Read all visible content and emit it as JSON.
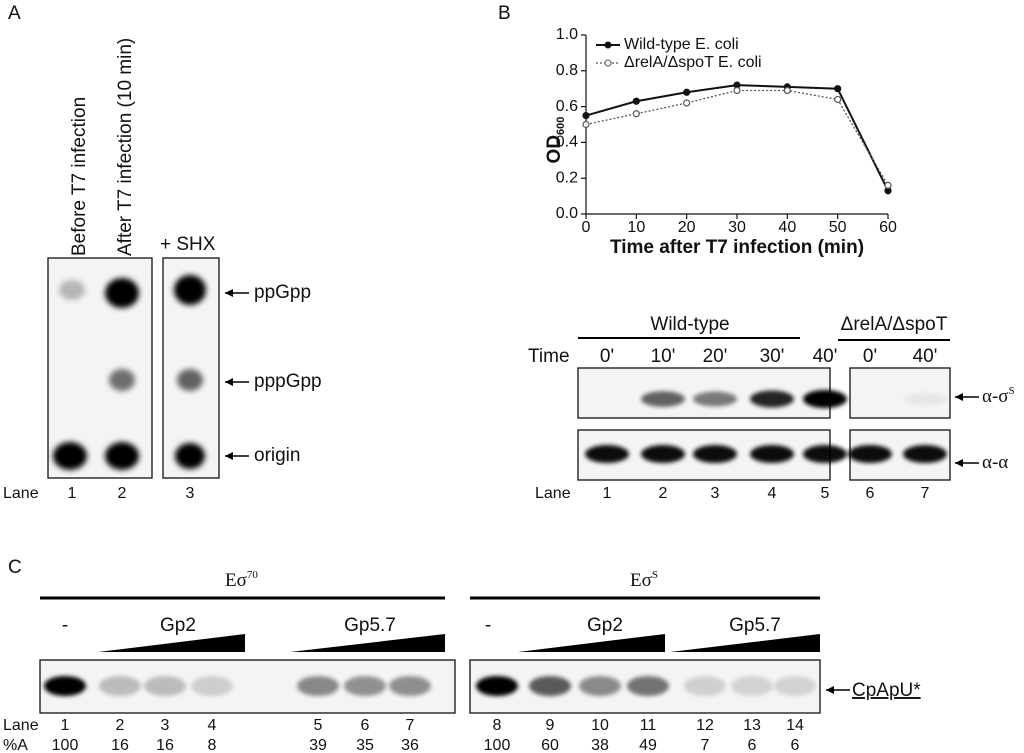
{
  "panel_labels": [
    "A",
    "B",
    "C"
  ],
  "panel_a": {
    "lane_headers": [
      "Before T7 infection",
      "After T7 infection (10 min)",
      "+ SHX"
    ],
    "spots": [
      "ppGpp",
      "pppGpp",
      "origin"
    ],
    "lane_label": "Lane",
    "lanes": [
      1,
      2,
      3
    ]
  },
  "chart_data": {
    "type": "line",
    "xlabel": "Time after T7 infection (min)",
    "ylabel": "OD",
    "ylabel_sub": "600",
    "x": [
      0,
      10,
      20,
      30,
      40,
      50,
      60
    ],
    "xlim": [
      0,
      60
    ],
    "xticks": [
      0,
      10,
      20,
      30,
      40,
      50,
      60
    ],
    "ylim": [
      0,
      1
    ],
    "yticks": [
      {
        "value": 0,
        "label": "0.0"
      },
      0.2,
      0.4,
      0.6,
      0.8,
      {
        "value": 1,
        "label": "1.0"
      }
    ],
    "legend": "upper left",
    "series": [
      {
        "name": "Wild-type E. coli",
        "color": "#111111",
        "values": [
          0.55,
          0.63,
          0.68,
          0.72,
          0.71,
          0.7,
          0.13
        ]
      },
      {
        "name": "ΔrelA/ΔspoT E. coli",
        "color": "#555555",
        "values": [
          0.5,
          0.56,
          0.62,
          0.69,
          0.69,
          0.64,
          0.16
        ]
      }
    ]
  },
  "panel_b_blot": {
    "groups": [
      "Wild-type",
      "ΔrelA/ΔspoT"
    ],
    "time_label": "Time",
    "times": [
      "0'",
      "10'",
      "20'",
      "30'",
      "40'",
      "0'",
      "40'"
    ],
    "bands": [
      {
        "text": "α-σ",
        "sup": "S"
      },
      {
        "text": "α-α"
      }
    ],
    "lane_label": "Lane",
    "lanes": [
      1,
      2,
      3,
      4,
      5,
      6,
      7
    ]
  },
  "panel_c": {
    "enzymes": [
      {
        "text": "Eσ",
        "sup": "70"
      },
      {
        "text": "Eσ",
        "sup": "S"
      }
    ],
    "conditions": [
      "-",
      "Gp2",
      "Gp5.7",
      "-",
      "Gp2",
      "Gp5.7"
    ],
    "product": "CpApU*",
    "lane_label": "Lane",
    "lanes": [
      1,
      2,
      3,
      4,
      5,
      6,
      7,
      8,
      9,
      10,
      11,
      12,
      13,
      14
    ],
    "percent_label": "%A",
    "percent_a": [
      100,
      16,
      16,
      8,
      39,
      35,
      36,
      100,
      60,
      38,
      49,
      7,
      6,
      6
    ]
  }
}
